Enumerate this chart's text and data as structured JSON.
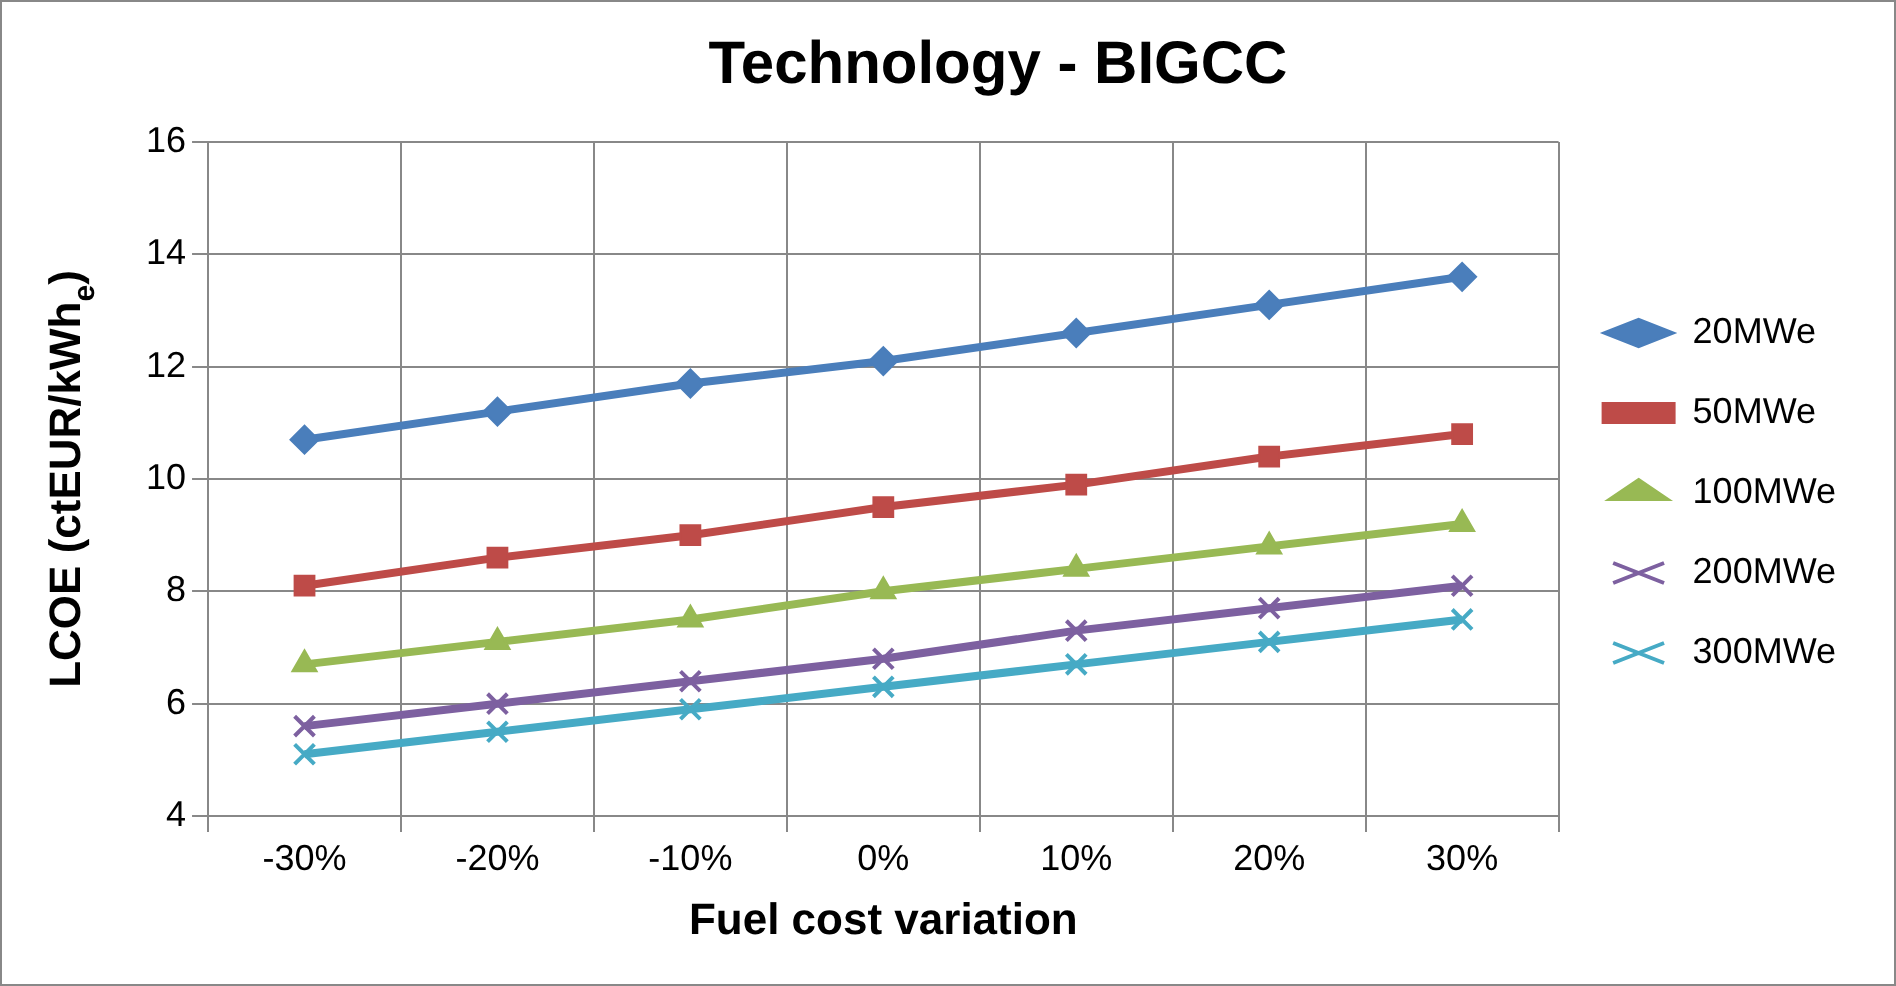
{
  "chart_data": {
    "type": "line",
    "title": "Technology - BIGCC",
    "xlabel": "Fuel cost variation",
    "ylabel": "LCOE (ctEUR/kWh$_{e}$)",
    "categories": [
      "-30%",
      "-20%",
      "-10%",
      "0%",
      "10%",
      "20%",
      "30%"
    ],
    "series": [
      {
        "name": "20MWe",
        "color": "#4a7ebb",
        "marker": "diamond",
        "values": [
          10.7,
          11.2,
          11.7,
          12.1,
          12.6,
          13.1,
          13.6
        ]
      },
      {
        "name": "50MWe",
        "color": "#be4b48",
        "marker": "square",
        "values": [
          8.1,
          8.6,
          9.0,
          9.5,
          9.9,
          10.4,
          10.8
        ]
      },
      {
        "name": "100MWe",
        "color": "#98b954",
        "marker": "triangle",
        "values": [
          6.7,
          7.1,
          7.5,
          8.0,
          8.4,
          8.8,
          9.2
        ]
      },
      {
        "name": "200MWe",
        "color": "#7d60a0",
        "marker": "cross",
        "values": [
          5.6,
          6.0,
          6.4,
          6.8,
          7.3,
          7.7,
          8.1
        ]
      },
      {
        "name": "300MWe",
        "color": "#46aac5",
        "marker": "cross",
        "values": [
          5.1,
          5.5,
          5.9,
          6.3,
          6.7,
          7.1,
          7.5
        ]
      }
    ],
    "ylim": [
      4,
      16
    ],
    "yticks": [
      4,
      6,
      8,
      10,
      12,
      14,
      16
    ],
    "grid": true,
    "legend": "right",
    "line_style": "solid"
  }
}
